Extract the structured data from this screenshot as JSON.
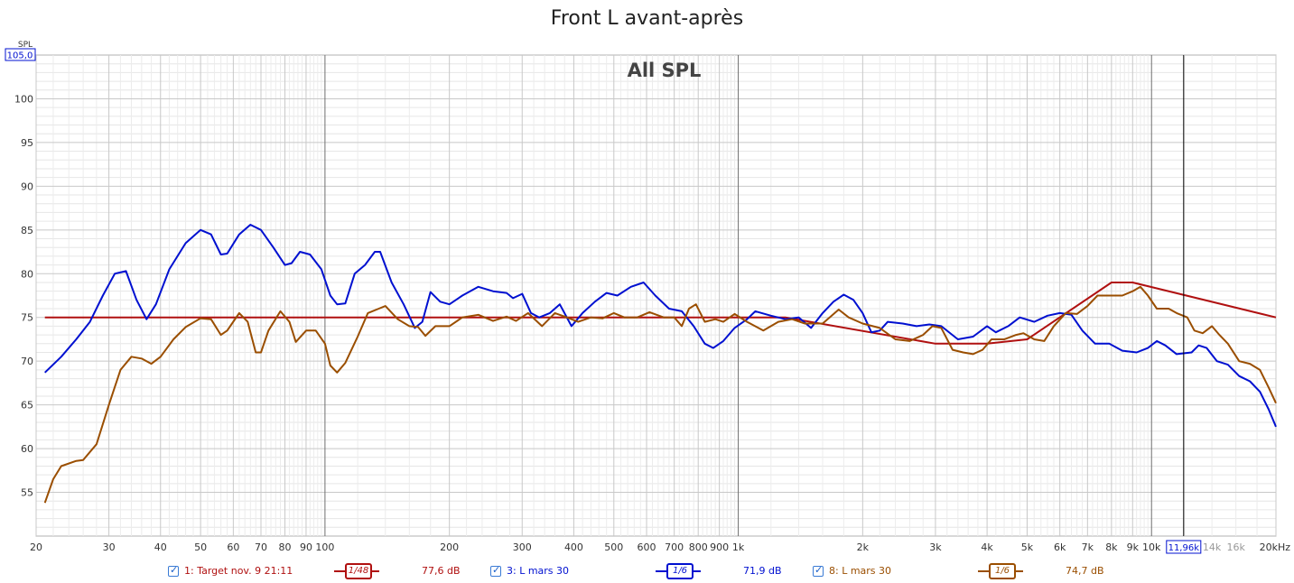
{
  "title": "Front L avant-après",
  "chart_data": {
    "type": "line",
    "subtitle": "All SPL",
    "ylabel": "SPL",
    "ylim": [
      50,
      105
    ],
    "y_top_label": "105,0",
    "xlim": [
      20,
      20000
    ],
    "x_scale": "log",
    "cursor_label": "11,96k",
    "cursor_x": 11960,
    "yticks": [
      "55",
      "60",
      "65",
      "70",
      "75",
      "80",
      "85",
      "90",
      "95",
      "100"
    ],
    "yticks_values": [
      55,
      60,
      65,
      70,
      75,
      80,
      85,
      90,
      95,
      100
    ],
    "xticks": [
      {
        "v": 20,
        "l": "20"
      },
      {
        "v": 30,
        "l": "30"
      },
      {
        "v": 40,
        "l": "40"
      },
      {
        "v": 50,
        "l": "50"
      },
      {
        "v": 60,
        "l": "60"
      },
      {
        "v": 70,
        "l": "70"
      },
      {
        "v": 80,
        "l": "80"
      },
      {
        "v": 90,
        "l": "90"
      },
      {
        "v": 100,
        "l": "100"
      },
      {
        "v": 200,
        "l": "200"
      },
      {
        "v": 300,
        "l": "300"
      },
      {
        "v": 400,
        "l": "400"
      },
      {
        "v": 500,
        "l": "500"
      },
      {
        "v": 600,
        "l": "600"
      },
      {
        "v": 700,
        "l": "700"
      },
      {
        "v": 800,
        "l": "800"
      },
      {
        "v": 900,
        "l": "900"
      },
      {
        "v": 1000,
        "l": "1k"
      },
      {
        "v": 2000,
        "l": "2k"
      },
      {
        "v": 3000,
        "l": "3k"
      },
      {
        "v": 4000,
        "l": "4k"
      },
      {
        "v": 5000,
        "l": "5k"
      },
      {
        "v": 6000,
        "l": "6k"
      },
      {
        "v": 7000,
        "l": "7k"
      },
      {
        "v": 8000,
        "l": "8k"
      },
      {
        "v": 9000,
        "l": "9k"
      },
      {
        "v": 10000,
        "l": "10k"
      },
      {
        "v": 14000,
        "l": "14k"
      },
      {
        "v": 16000,
        "l": "16k"
      },
      {
        "v": 20000,
        "l": "20kHz"
      }
    ],
    "series": [
      {
        "name": "1: Target nov. 9 21:11",
        "color": "#b01010",
        "smoothing": "1/48",
        "level": "77,6 dB",
        "points": [
          [
            21,
            75
          ],
          [
            1300,
            75
          ],
          [
            3000,
            72
          ],
          [
            4000,
            72
          ],
          [
            5000,
            72.5
          ],
          [
            8000,
            79
          ],
          [
            9000,
            79
          ],
          [
            20000,
            75
          ]
        ]
      },
      {
        "name": "3: L mars 30",
        "color": "#0010d0",
        "smoothing": "1/6",
        "level": "71,9 dB",
        "points": [
          [
            21,
            68.7
          ],
          [
            23,
            70.5
          ],
          [
            25,
            72.5
          ],
          [
            27,
            74.5
          ],
          [
            29,
            77.5
          ],
          [
            31,
            80
          ],
          [
            33,
            80.3
          ],
          [
            35,
            77
          ],
          [
            37,
            74.8
          ],
          [
            39,
            76.5
          ],
          [
            42,
            80.5
          ],
          [
            46,
            83.5
          ],
          [
            50,
            85
          ],
          [
            53,
            84.5
          ],
          [
            56,
            82.2
          ],
          [
            58,
            82.3
          ],
          [
            62,
            84.5
          ],
          [
            66,
            85.6
          ],
          [
            70,
            85
          ],
          [
            75,
            83
          ],
          [
            80,
            81
          ],
          [
            83,
            81.2
          ],
          [
            87,
            82.5
          ],
          [
            92,
            82.2
          ],
          [
            98,
            80.5
          ],
          [
            103,
            77.5
          ],
          [
            107,
            76.5
          ],
          [
            112,
            76.6
          ],
          [
            118,
            80
          ],
          [
            125,
            81
          ],
          [
            132,
            82.5
          ],
          [
            136,
            82.5
          ],
          [
            145,
            79
          ],
          [
            155,
            76.5
          ],
          [
            165,
            73.8
          ],
          [
            172,
            74.5
          ],
          [
            180,
            77.9
          ],
          [
            190,
            76.8
          ],
          [
            200,
            76.5
          ],
          [
            215,
            77.5
          ],
          [
            235,
            78.5
          ],
          [
            255,
            78
          ],
          [
            275,
            77.8
          ],
          [
            285,
            77.2
          ],
          [
            300,
            77.7
          ],
          [
            315,
            75.5
          ],
          [
            330,
            75
          ],
          [
            350,
            75.5
          ],
          [
            370,
            76.5
          ],
          [
            395,
            74
          ],
          [
            420,
            75.5
          ],
          [
            450,
            76.8
          ],
          [
            480,
            77.8
          ],
          [
            510,
            77.5
          ],
          [
            550,
            78.5
          ],
          [
            590,
            79
          ],
          [
            630,
            77.5
          ],
          [
            680,
            76
          ],
          [
            730,
            75.7
          ],
          [
            780,
            74
          ],
          [
            830,
            72
          ],
          [
            870,
            71.5
          ],
          [
            920,
            72.3
          ],
          [
            980,
            73.8
          ],
          [
            1050,
            74.8
          ],
          [
            1100,
            75.7
          ],
          [
            1200,
            75.2
          ],
          [
            1300,
            74.8
          ],
          [
            1400,
            75
          ],
          [
            1500,
            73.8
          ],
          [
            1600,
            75.5
          ],
          [
            1700,
            76.8
          ],
          [
            1800,
            77.6
          ],
          [
            1900,
            77
          ],
          [
            2000,
            75.5
          ],
          [
            2100,
            73.3
          ],
          [
            2200,
            73.5
          ],
          [
            2300,
            74.5
          ],
          [
            2500,
            74.3
          ],
          [
            2700,
            74
          ],
          [
            2900,
            74.2
          ],
          [
            3100,
            74
          ],
          [
            3400,
            72.5
          ],
          [
            3700,
            72.8
          ],
          [
            4000,
            74
          ],
          [
            4200,
            73.3
          ],
          [
            4500,
            74
          ],
          [
            4800,
            75
          ],
          [
            5200,
            74.5
          ],
          [
            5600,
            75.2
          ],
          [
            6000,
            75.5
          ],
          [
            6400,
            75.3
          ],
          [
            6800,
            73.5
          ],
          [
            7300,
            72
          ],
          [
            7900,
            72
          ],
          [
            8500,
            71.2
          ],
          [
            9200,
            71
          ],
          [
            9800,
            71.5
          ],
          [
            10300,
            72.3
          ],
          [
            10800,
            71.8
          ],
          [
            11500,
            70.8
          ],
          [
            12500,
            71
          ],
          [
            13000,
            71.8
          ],
          [
            13600,
            71.5
          ],
          [
            14400,
            70
          ],
          [
            15300,
            69.6
          ],
          [
            16300,
            68.3
          ],
          [
            17300,
            67.7
          ],
          [
            18300,
            66.5
          ],
          [
            19200,
            64.5
          ],
          [
            20000,
            62.5
          ]
        ]
      },
      {
        "name": "8: L mars 30",
        "color": "#9a4e00",
        "smoothing": "1/6",
        "level": "74,7 dB",
        "points": [
          [
            21,
            53.8
          ],
          [
            22,
            56.5
          ],
          [
            23,
            58
          ],
          [
            25,
            58.6
          ],
          [
            26,
            58.7
          ],
          [
            28,
            60.5
          ],
          [
            30,
            65
          ],
          [
            32,
            69
          ],
          [
            34,
            70.5
          ],
          [
            36,
            70.3
          ],
          [
            38,
            69.7
          ],
          [
            40,
            70.5
          ],
          [
            43,
            72.5
          ],
          [
            46,
            73.9
          ],
          [
            50,
            74.9
          ],
          [
            53,
            74.8
          ],
          [
            56,
            73
          ],
          [
            58,
            73.5
          ],
          [
            62,
            75.5
          ],
          [
            65,
            74.5
          ],
          [
            68,
            71
          ],
          [
            70,
            71
          ],
          [
            73,
            73.5
          ],
          [
            78,
            75.7
          ],
          [
            82,
            74.5
          ],
          [
            85,
            72.2
          ],
          [
            90,
            73.5
          ],
          [
            95,
            73.5
          ],
          [
            100,
            72
          ],
          [
            103,
            69.5
          ],
          [
            107,
            68.7
          ],
          [
            112,
            69.8
          ],
          [
            120,
            72.8
          ],
          [
            127,
            75.5
          ],
          [
            135,
            76
          ],
          [
            140,
            76.3
          ],
          [
            150,
            74.8
          ],
          [
            160,
            74
          ],
          [
            168,
            73.9
          ],
          [
            175,
            72.9
          ],
          [
            185,
            74
          ],
          [
            200,
            74
          ],
          [
            215,
            75
          ],
          [
            235,
            75.3
          ],
          [
            255,
            74.6
          ],
          [
            275,
            75.1
          ],
          [
            290,
            74.6
          ],
          [
            310,
            75.5
          ],
          [
            335,
            74
          ],
          [
            360,
            75.5
          ],
          [
            385,
            75
          ],
          [
            410,
            74.5
          ],
          [
            440,
            75
          ],
          [
            470,
            74.9
          ],
          [
            500,
            75.5
          ],
          [
            530,
            75
          ],
          [
            570,
            75
          ],
          [
            610,
            75.6
          ],
          [
            660,
            75
          ],
          [
            700,
            75
          ],
          [
            730,
            74
          ],
          [
            760,
            76
          ],
          [
            790,
            76.5
          ],
          [
            830,
            74.5
          ],
          [
            880,
            74.8
          ],
          [
            920,
            74.5
          ],
          [
            980,
            75.4
          ],
          [
            1050,
            74.5
          ],
          [
            1150,
            73.5
          ],
          [
            1250,
            74.5
          ],
          [
            1350,
            74.8
          ],
          [
            1450,
            74.3
          ],
          [
            1600,
            74.3
          ],
          [
            1750,
            75.9
          ],
          [
            1850,
            75
          ],
          [
            2000,
            74.3
          ],
          [
            2200,
            73.8
          ],
          [
            2400,
            72.5
          ],
          [
            2600,
            72.3
          ],
          [
            2800,
            73
          ],
          [
            2950,
            74
          ],
          [
            3100,
            73.8
          ],
          [
            3300,
            71.3
          ],
          [
            3500,
            71
          ],
          [
            3700,
            70.8
          ],
          [
            3900,
            71.3
          ],
          [
            4100,
            72.5
          ],
          [
            4400,
            72.5
          ],
          [
            4700,
            73
          ],
          [
            4900,
            73.2
          ],
          [
            5200,
            72.5
          ],
          [
            5500,
            72.3
          ],
          [
            5800,
            74
          ],
          [
            6200,
            75.5
          ],
          [
            6600,
            75.4
          ],
          [
            7000,
            76.3
          ],
          [
            7400,
            77.5
          ],
          [
            7900,
            77.5
          ],
          [
            8500,
            77.5
          ],
          [
            9000,
            78
          ],
          [
            9400,
            78.5
          ],
          [
            9800,
            77.5
          ],
          [
            10300,
            76
          ],
          [
            11000,
            76
          ],
          [
            11500,
            75.5
          ],
          [
            12200,
            75
          ],
          [
            12700,
            73.5
          ],
          [
            13300,
            73.2
          ],
          [
            14000,
            74
          ],
          [
            14600,
            73
          ],
          [
            15300,
            72
          ],
          [
            16300,
            70
          ],
          [
            17300,
            69.7
          ],
          [
            18300,
            69
          ],
          [
            19200,
            67
          ],
          [
            20000,
            65.2
          ]
        ]
      }
    ]
  }
}
